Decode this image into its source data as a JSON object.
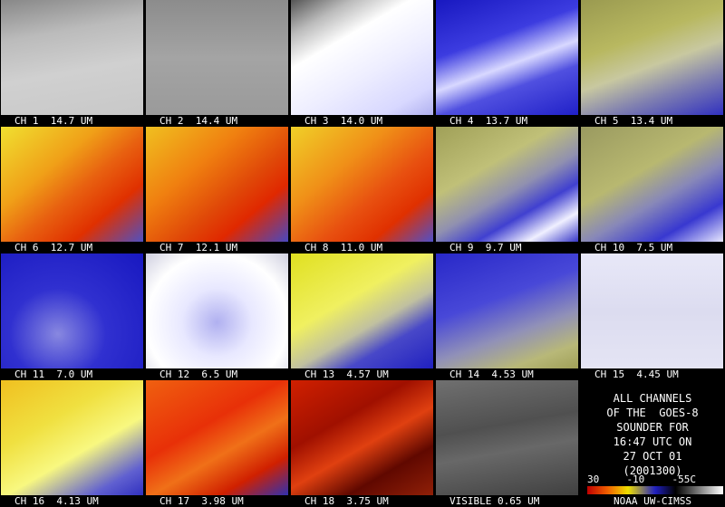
{
  "panels": [
    {
      "label": "CH 1  14.7 UM"
    },
    {
      "label": "CH 2  14.4 UM"
    },
    {
      "label": "CH 3  14.0 UM"
    },
    {
      "label": "CH 4  13.7 UM"
    },
    {
      "label": "CH 5  13.4 UM"
    },
    {
      "label": "CH 6  12.7 UM"
    },
    {
      "label": "CH 7  12.1 UM"
    },
    {
      "label": "CH 8  11.0 UM"
    },
    {
      "label": "CH 9  9.7 UM"
    },
    {
      "label": "CH 10  7.5 UM"
    },
    {
      "label": "CH 11  7.0 UM"
    },
    {
      "label": "CH 12  6.5 UM"
    },
    {
      "label": "CH 13  4.57 UM"
    },
    {
      "label": "CH 14  4.53 UM"
    },
    {
      "label": "CH 15  4.45 UM"
    },
    {
      "label": "CH 16  4.13 UM"
    },
    {
      "label": "CH 17  3.98 UM"
    },
    {
      "label": "CH 18  3.75 UM"
    },
    {
      "label": "VISIBLE 0.65 UM"
    }
  ],
  "info": {
    "lines": [
      "ALL CHANNELS",
      "OF THE  GOES-8",
      "SOUNDER FOR",
      "16:47 UTC ON",
      "27 OCT 01",
      "(2001300)"
    ],
    "scale_labels": [
      "30",
      "-10",
      "-55C"
    ],
    "credit": "NOAA UW-CIMSS"
  }
}
